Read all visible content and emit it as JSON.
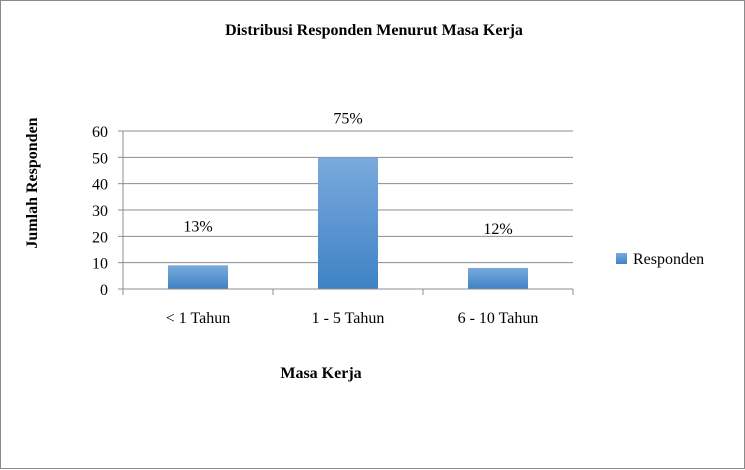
{
  "chart_data": {
    "type": "bar",
    "title": "Distribusi Responden  Menurut  Masa  Kerja",
    "xlabel": "Masa  Kerja",
    "ylabel": "Jumlah Responden",
    "categories": [
      "< 1 Tahun",
      "1 - 5 Tahun",
      "6 - 10 Tahun"
    ],
    "series": [
      {
        "name": "Responden",
        "values": [
          9,
          50,
          8
        ],
        "data_labels": [
          "13%",
          "75%",
          "12%"
        ]
      }
    ],
    "ylim": [
      0,
      60
    ],
    "yticks": [
      0,
      10,
      20,
      30,
      40,
      50,
      60
    ],
    "grid": true,
    "legend_position": "right",
    "colors": {
      "bar_top": "#7aaadc",
      "bar_bottom": "#3f82c6",
      "gridline": "#8c8c8c",
      "axis": "#8c8c8c",
      "text": "#000000"
    }
  }
}
